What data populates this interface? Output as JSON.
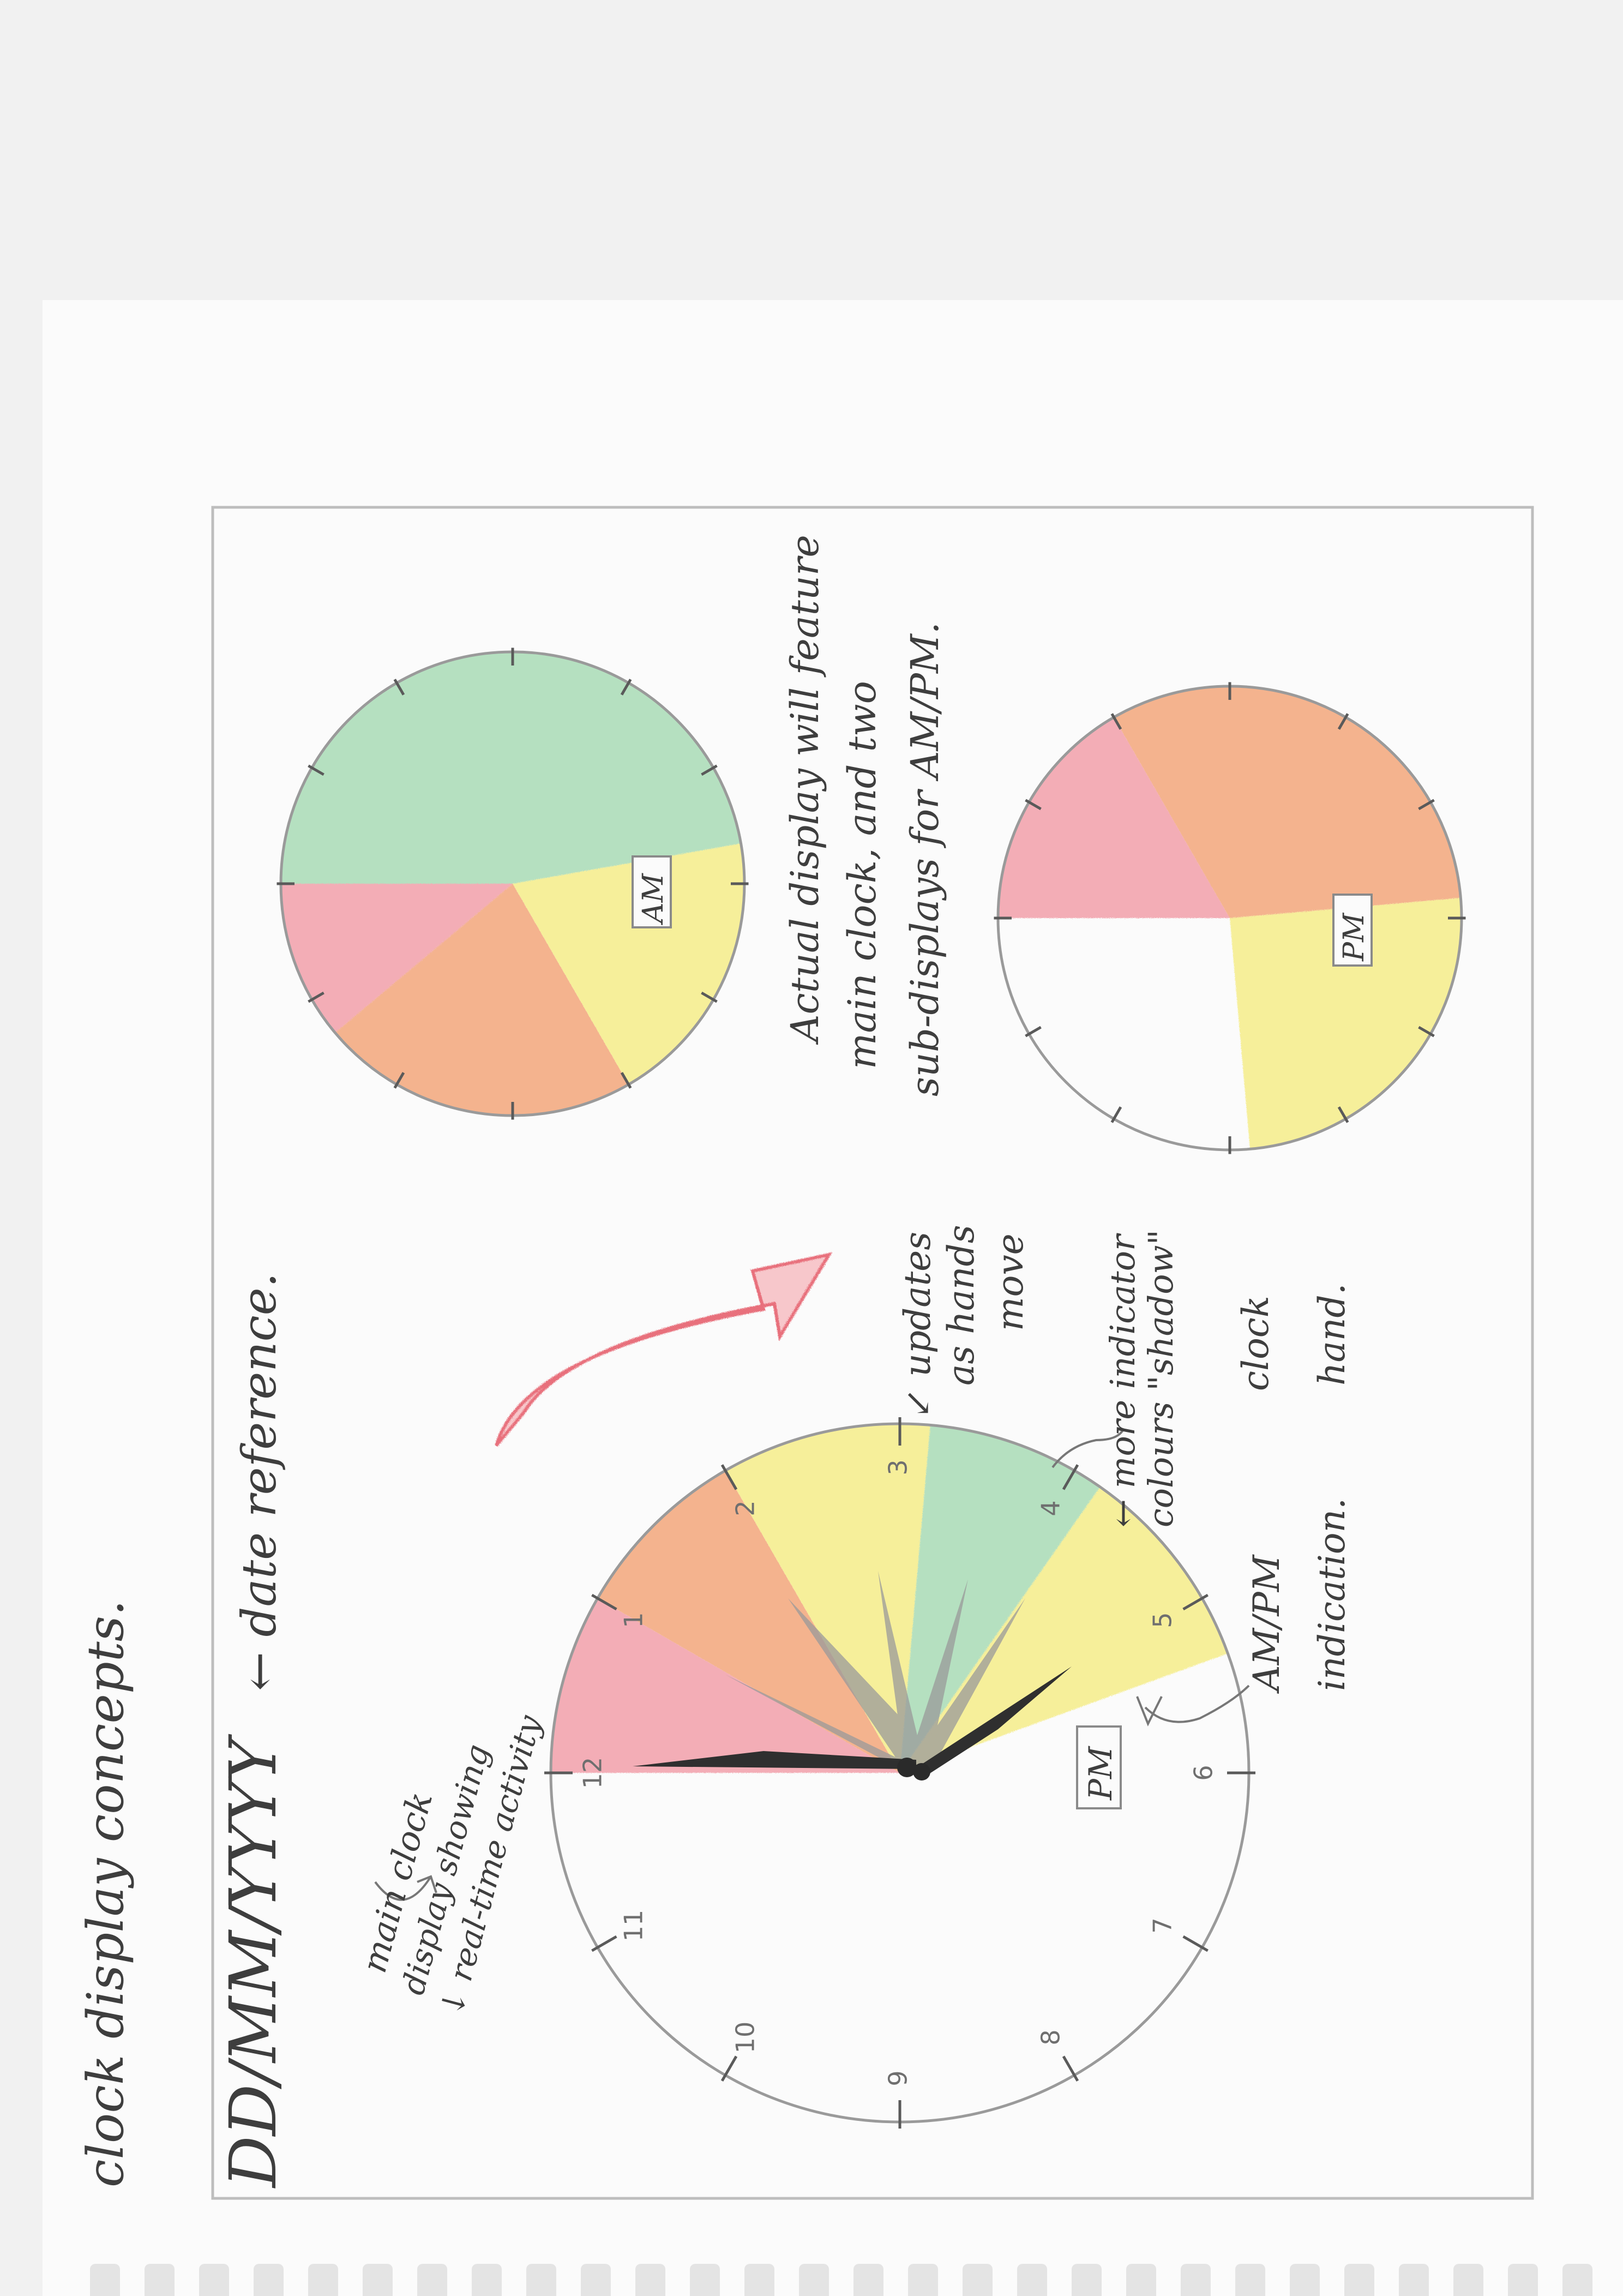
{
  "sketch": {
    "title": "clock display concepts.",
    "date_format": "DD/MM/YYYY",
    "date_note": "← date reference.",
    "main_clock_note": [
      "main clock",
      "display showing",
      "↓ real-time activity"
    ],
    "updates_note": [
      "↙ updates",
      "as hands",
      "move"
    ],
    "shadow_note": [
      "← more indicator",
      "colours \"shadow\"",
      "clock",
      "hand."
    ],
    "ampm_note": [
      "AM/PM",
      "indication."
    ],
    "actual_note": [
      "Actual display will feature",
      "main clock, and two",
      "sub-displays for AM/PM."
    ],
    "main_clock": {
      "numerals": [
        "12",
        "1",
        "2",
        "3",
        "4",
        "5",
        "6",
        "7",
        "8",
        "9",
        "10",
        "11"
      ],
      "badge": "PM"
    },
    "sub_display_am": {
      "badge": "AM"
    },
    "sub_display_pm": {
      "badge": "PM"
    }
  },
  "colors": {
    "paper": "#fbfbfb",
    "pencil": "#3e3e3e",
    "green": "#a9dcb6",
    "yellow": "#f6ed8a",
    "orange": "#f3a77c",
    "red": "#f2a0ab",
    "arrow": "#f19aa0"
  },
  "icons": [
    "clock-hand-icon",
    "curved-arrow-icon"
  ]
}
